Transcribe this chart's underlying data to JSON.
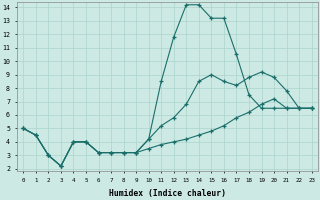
{
  "bg_color": "#cce9e4",
  "grid_color": "#aad4cc",
  "line_color": "#1a6e6a",
  "xlabel": "Humidex (Indice chaleur)",
  "xlim_min": -0.5,
  "xlim_max": 23.5,
  "ylim_min": 1.8,
  "ylim_max": 14.4,
  "xticks": [
    0,
    1,
    2,
    3,
    4,
    5,
    6,
    7,
    8,
    9,
    10,
    11,
    12,
    13,
    14,
    15,
    16,
    17,
    18,
    19,
    20,
    21,
    22,
    23
  ],
  "yticks": [
    2,
    3,
    4,
    5,
    6,
    7,
    8,
    9,
    10,
    11,
    12,
    13,
    14
  ],
  "line1_x": [
    0,
    1,
    2,
    3,
    4,
    5,
    6,
    7,
    8,
    9,
    10,
    11,
    12,
    13,
    14,
    15,
    16,
    17,
    18,
    19,
    20,
    21,
    22,
    23
  ],
  "line1_y": [
    5.0,
    4.5,
    3.0,
    2.2,
    4.0,
    4.0,
    3.2,
    3.2,
    3.2,
    3.2,
    4.2,
    8.5,
    11.8,
    14.2,
    14.2,
    13.2,
    13.2,
    10.5,
    7.5,
    6.5,
    6.5,
    6.5,
    6.5,
    6.5
  ],
  "line2_x": [
    0,
    1,
    2,
    3,
    4,
    5,
    6,
    7,
    8,
    9,
    10,
    11,
    12,
    13,
    14,
    15,
    16,
    17,
    18,
    19,
    20,
    21,
    22,
    23
  ],
  "line2_y": [
    5.0,
    4.5,
    3.0,
    2.2,
    4.0,
    4.0,
    3.2,
    3.2,
    3.2,
    3.2,
    4.2,
    5.2,
    5.8,
    6.8,
    8.5,
    9.0,
    8.5,
    8.2,
    8.8,
    9.2,
    8.8,
    7.8,
    6.5,
    6.5
  ],
  "line3_x": [
    0,
    1,
    2,
    3,
    4,
    5,
    6,
    7,
    8,
    9,
    10,
    11,
    12,
    13,
    14,
    15,
    16,
    17,
    18,
    19,
    20,
    21,
    22,
    23
  ],
  "line3_y": [
    5.0,
    4.5,
    3.0,
    2.2,
    4.0,
    4.0,
    3.2,
    3.2,
    3.2,
    3.2,
    3.5,
    3.8,
    4.0,
    4.2,
    4.5,
    4.8,
    5.2,
    5.8,
    6.2,
    6.8,
    7.2,
    6.5,
    6.5,
    6.5
  ]
}
